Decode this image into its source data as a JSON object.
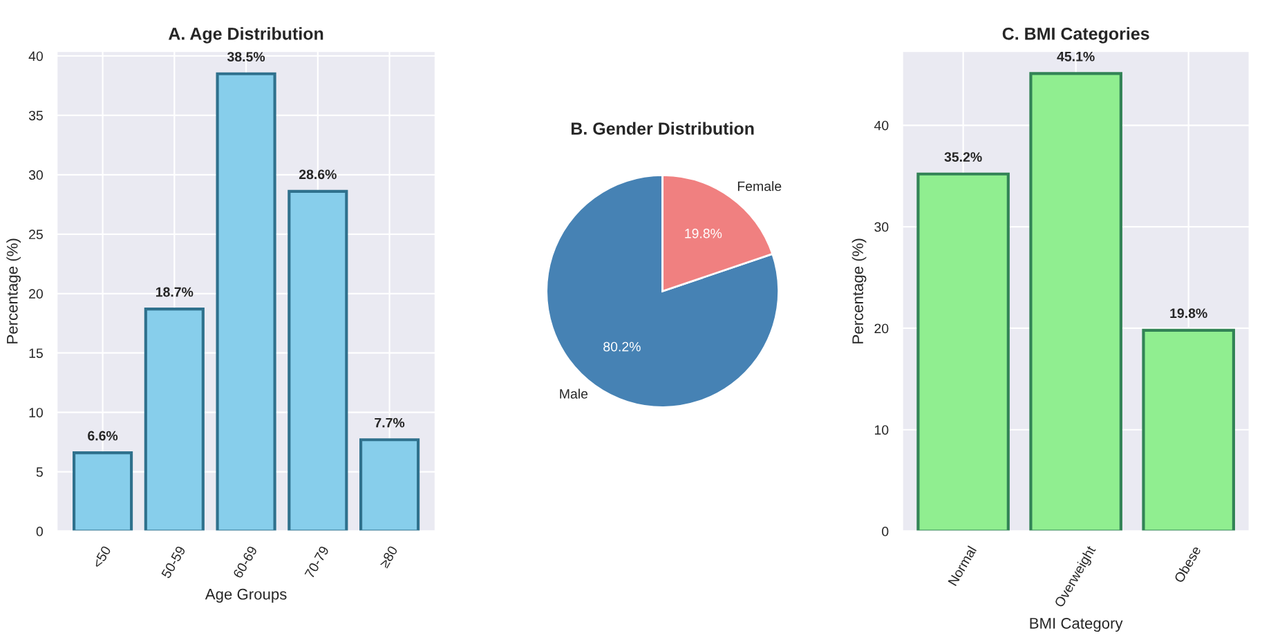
{
  "chart_data": [
    {
      "type": "bar",
      "title": "A. Age Distribution",
      "xlabel": "Age Groups",
      "ylabel": "Percentage (%)",
      "categories": [
        "<50",
        "50-59",
        "60-69",
        "70-79",
        "≥80"
      ],
      "values": [
        6.6,
        18.7,
        38.5,
        28.6,
        7.7
      ],
      "color": "#87ceeb",
      "value_labels": [
        "6.6%",
        "18.7%",
        "38.5%",
        "28.6%",
        "7.7%"
      ],
      "ylim": [
        0,
        40.4
      ],
      "yticks": [
        0,
        5,
        10,
        15,
        20,
        25,
        30,
        35,
        40
      ],
      "grid": true
    },
    {
      "type": "pie",
      "title": "B. Gender Distribution",
      "categories": [
        "Male",
        "Female"
      ],
      "values": [
        80.2,
        19.8
      ],
      "colors": [
        "#4682b4",
        "#f08080"
      ],
      "value_labels": [
        "80.2%",
        "19.8%"
      ]
    },
    {
      "type": "bar",
      "title": "C. BMI Categories",
      "xlabel": "BMI Category",
      "ylabel": "Percentage (%)",
      "categories": [
        "Normal",
        "Overweight",
        "Obese"
      ],
      "values": [
        35.2,
        45.1,
        19.8
      ],
      "color": "#90ee90",
      "value_labels": [
        "35.2%",
        "45.1%",
        "19.8%"
      ],
      "ylim": [
        0,
        47.3
      ],
      "yticks": [
        0,
        10,
        20,
        30,
        40
      ],
      "grid": true
    }
  ]
}
